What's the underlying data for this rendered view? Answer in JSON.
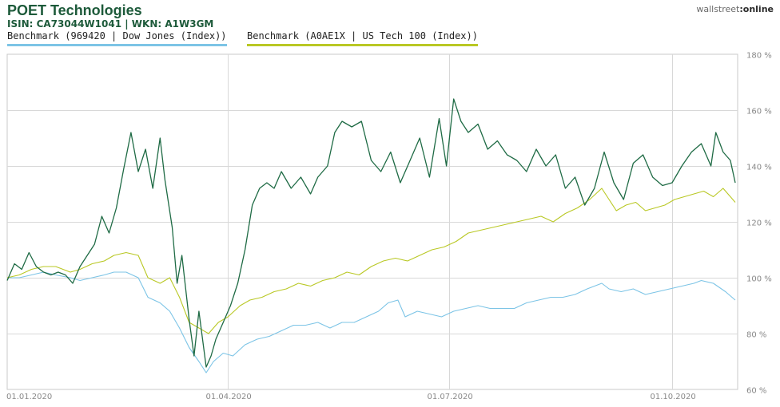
{
  "header": {
    "title": "POET Technologies",
    "subtitle": "ISIN: CA73044W1041  | WKN: A1W3GM",
    "brand_left": "wallstreet",
    "brand_right": ":online"
  },
  "legend": [
    {
      "label": "Benchmark (969420 | Dow Jones (Index))",
      "color": "#7cc4e6"
    },
    {
      "label": "Benchmark (A0AE1X | US Tech 100 (Index))",
      "color": "#b9c824"
    }
  ],
  "chart_data": {
    "type": "line",
    "title": "POET Technologies",
    "x_ticks": [
      "01.01.2020",
      "01.04.2020",
      "01.07.2020",
      "01.10.2020"
    ],
    "y_ticks": [
      "180 %",
      "160 %",
      "140 %",
      "120 %",
      "100 %",
      "80 %",
      "60 %"
    ],
    "ylim": [
      60,
      180
    ],
    "y_unit": "%",
    "grid": true,
    "legend_position": "top-left",
    "series": [
      {
        "name": "",
        "color": "#1f6b45",
        "points": [
          [
            "2020-01-01",
            99
          ],
          [
            "2020-01-04",
            105
          ],
          [
            "2020-01-07",
            103
          ],
          [
            "2020-01-10",
            109
          ],
          [
            "2020-01-13",
            104
          ],
          [
            "2020-01-16",
            102
          ],
          [
            "2020-01-19",
            101
          ],
          [
            "2020-01-22",
            102
          ],
          [
            "2020-01-25",
            101
          ],
          [
            "2020-01-28",
            98
          ],
          [
            "2020-01-31",
            104
          ],
          [
            "2020-02-03",
            108
          ],
          [
            "2020-02-06",
            112
          ],
          [
            "2020-02-09",
            122
          ],
          [
            "2020-02-12",
            116
          ],
          [
            "2020-02-15",
            125
          ],
          [
            "2020-02-18",
            139
          ],
          [
            "2020-02-21",
            152
          ],
          [
            "2020-02-24",
            138
          ],
          [
            "2020-02-27",
            146
          ],
          [
            "2020-03-01",
            132
          ],
          [
            "2020-03-04",
            150
          ],
          [
            "2020-03-06",
            135
          ],
          [
            "2020-03-09",
            118
          ],
          [
            "2020-03-11",
            98
          ],
          [
            "2020-03-13",
            108
          ],
          [
            "2020-03-16",
            85
          ],
          [
            "2020-03-18",
            72
          ],
          [
            "2020-03-20",
            88
          ],
          [
            "2020-03-23",
            68
          ],
          [
            "2020-03-25",
            72
          ],
          [
            "2020-03-27",
            78
          ],
          [
            "2020-03-30",
            84
          ],
          [
            "2020-04-02",
            90
          ],
          [
            "2020-04-05",
            98
          ],
          [
            "2020-04-08",
            110
          ],
          [
            "2020-04-11",
            126
          ],
          [
            "2020-04-14",
            132
          ],
          [
            "2020-04-17",
            134
          ],
          [
            "2020-04-20",
            132
          ],
          [
            "2020-04-23",
            138
          ],
          [
            "2020-04-27",
            132
          ],
          [
            "2020-05-01",
            136
          ],
          [
            "2020-05-05",
            130
          ],
          [
            "2020-05-08",
            136
          ],
          [
            "2020-05-12",
            140
          ],
          [
            "2020-05-15",
            152
          ],
          [
            "2020-05-18",
            156
          ],
          [
            "2020-05-22",
            154
          ],
          [
            "2020-05-26",
            156
          ],
          [
            "2020-05-30",
            142
          ],
          [
            "2020-06-03",
            138
          ],
          [
            "2020-06-07",
            145
          ],
          [
            "2020-06-11",
            134
          ],
          [
            "2020-06-15",
            142
          ],
          [
            "2020-06-19",
            150
          ],
          [
            "2020-06-23",
            136
          ],
          [
            "2020-06-27",
            157
          ],
          [
            "2020-06-30",
            140
          ],
          [
            "2020-07-03",
            164
          ],
          [
            "2020-07-06",
            156
          ],
          [
            "2020-07-09",
            152
          ],
          [
            "2020-07-13",
            155
          ],
          [
            "2020-07-17",
            146
          ],
          [
            "2020-07-21",
            149
          ],
          [
            "2020-07-25",
            144
          ],
          [
            "2020-07-29",
            142
          ],
          [
            "2020-08-02",
            138
          ],
          [
            "2020-08-06",
            146
          ],
          [
            "2020-08-10",
            140
          ],
          [
            "2020-08-14",
            144
          ],
          [
            "2020-08-18",
            132
          ],
          [
            "2020-08-22",
            136
          ],
          [
            "2020-08-26",
            126
          ],
          [
            "2020-08-30",
            132
          ],
          [
            "2020-09-03",
            145
          ],
          [
            "2020-09-07",
            134
          ],
          [
            "2020-09-11",
            128
          ],
          [
            "2020-09-15",
            141
          ],
          [
            "2020-09-19",
            144
          ],
          [
            "2020-09-23",
            136
          ],
          [
            "2020-09-27",
            133
          ],
          [
            "2020-10-01",
            134
          ],
          [
            "2020-10-05",
            140
          ],
          [
            "2020-10-09",
            145
          ],
          [
            "2020-10-13",
            148
          ],
          [
            "2020-10-17",
            140
          ],
          [
            "2020-10-19",
            152
          ],
          [
            "2020-10-22",
            145
          ],
          [
            "2020-10-25",
            142
          ],
          [
            "2020-10-27",
            134
          ]
        ]
      },
      {
        "name": "Benchmark (A0AE1X | US Tech 100 (Index))",
        "color": "#b9c824",
        "points": [
          [
            "2020-01-01",
            100
          ],
          [
            "2020-01-06",
            101
          ],
          [
            "2020-01-11",
            103
          ],
          [
            "2020-01-16",
            104
          ],
          [
            "2020-01-21",
            104
          ],
          [
            "2020-01-27",
            102
          ],
          [
            "2020-01-31",
            103
          ],
          [
            "2020-02-05",
            105
          ],
          [
            "2020-02-10",
            106
          ],
          [
            "2020-02-14",
            108
          ],
          [
            "2020-02-19",
            109
          ],
          [
            "2020-02-24",
            108
          ],
          [
            "2020-02-28",
            100
          ],
          [
            "2020-03-04",
            98
          ],
          [
            "2020-03-08",
            100
          ],
          [
            "2020-03-12",
            93
          ],
          [
            "2020-03-16",
            84
          ],
          [
            "2020-03-20",
            82
          ],
          [
            "2020-03-24",
            80
          ],
          [
            "2020-03-28",
            84
          ],
          [
            "2020-04-01",
            86
          ],
          [
            "2020-04-06",
            90
          ],
          [
            "2020-04-10",
            92
          ],
          [
            "2020-04-15",
            93
          ],
          [
            "2020-04-20",
            95
          ],
          [
            "2020-04-25",
            96
          ],
          [
            "2020-04-30",
            98
          ],
          [
            "2020-05-05",
            97
          ],
          [
            "2020-05-10",
            99
          ],
          [
            "2020-05-15",
            100
          ],
          [
            "2020-05-20",
            102
          ],
          [
            "2020-05-25",
            101
          ],
          [
            "2020-05-30",
            104
          ],
          [
            "2020-06-04",
            106
          ],
          [
            "2020-06-09",
            107
          ],
          [
            "2020-06-14",
            106
          ],
          [
            "2020-06-19",
            108
          ],
          [
            "2020-06-24",
            110
          ],
          [
            "2020-06-29",
            111
          ],
          [
            "2020-07-04",
            113
          ],
          [
            "2020-07-09",
            116
          ],
          [
            "2020-07-14",
            117
          ],
          [
            "2020-07-19",
            118
          ],
          [
            "2020-07-24",
            119
          ],
          [
            "2020-07-29",
            120
          ],
          [
            "2020-08-03",
            121
          ],
          [
            "2020-08-08",
            122
          ],
          [
            "2020-08-13",
            120
          ],
          [
            "2020-08-18",
            123
          ],
          [
            "2020-08-23",
            125
          ],
          [
            "2020-08-28",
            128
          ],
          [
            "2020-09-02",
            132
          ],
          [
            "2020-09-05",
            128
          ],
          [
            "2020-09-08",
            124
          ],
          [
            "2020-09-12",
            126
          ],
          [
            "2020-09-16",
            127
          ],
          [
            "2020-09-20",
            124
          ],
          [
            "2020-09-24",
            125
          ],
          [
            "2020-09-28",
            126
          ],
          [
            "2020-10-02",
            128
          ],
          [
            "2020-10-06",
            129
          ],
          [
            "2020-10-10",
            130
          ],
          [
            "2020-10-14",
            131
          ],
          [
            "2020-10-18",
            129
          ],
          [
            "2020-10-22",
            132
          ],
          [
            "2020-10-27",
            127
          ]
        ]
      },
      {
        "name": "Benchmark (969420 | Dow Jones (Index))",
        "color": "#7cc4e6",
        "points": [
          [
            "2020-01-01",
            100
          ],
          [
            "2020-01-06",
            100
          ],
          [
            "2020-01-11",
            101
          ],
          [
            "2020-01-16",
            102
          ],
          [
            "2020-01-21",
            101
          ],
          [
            "2020-01-27",
            100
          ],
          [
            "2020-01-31",
            99
          ],
          [
            "2020-02-05",
            100
          ],
          [
            "2020-02-10",
            101
          ],
          [
            "2020-02-14",
            102
          ],
          [
            "2020-02-19",
            102
          ],
          [
            "2020-02-24",
            100
          ],
          [
            "2020-02-28",
            93
          ],
          [
            "2020-03-04",
            91
          ],
          [
            "2020-03-08",
            88
          ],
          [
            "2020-03-12",
            82
          ],
          [
            "2020-03-16",
            75
          ],
          [
            "2020-03-20",
            70
          ],
          [
            "2020-03-23",
            66
          ],
          [
            "2020-03-26",
            70
          ],
          [
            "2020-03-30",
            73
          ],
          [
            "2020-04-03",
            72
          ],
          [
            "2020-04-08",
            76
          ],
          [
            "2020-04-13",
            78
          ],
          [
            "2020-04-18",
            79
          ],
          [
            "2020-04-23",
            81
          ],
          [
            "2020-04-28",
            83
          ],
          [
            "2020-05-03",
            83
          ],
          [
            "2020-05-08",
            84
          ],
          [
            "2020-05-13",
            82
          ],
          [
            "2020-05-18",
            84
          ],
          [
            "2020-05-23",
            84
          ],
          [
            "2020-05-28",
            86
          ],
          [
            "2020-06-02",
            88
          ],
          [
            "2020-06-06",
            91
          ],
          [
            "2020-06-10",
            92
          ],
          [
            "2020-06-13",
            86
          ],
          [
            "2020-06-18",
            88
          ],
          [
            "2020-06-23",
            87
          ],
          [
            "2020-06-28",
            86
          ],
          [
            "2020-07-03",
            88
          ],
          [
            "2020-07-08",
            89
          ],
          [
            "2020-07-13",
            90
          ],
          [
            "2020-07-18",
            89
          ],
          [
            "2020-07-23",
            89
          ],
          [
            "2020-07-28",
            89
          ],
          [
            "2020-08-02",
            91
          ],
          [
            "2020-08-07",
            92
          ],
          [
            "2020-08-12",
            93
          ],
          [
            "2020-08-17",
            93
          ],
          [
            "2020-08-22",
            94
          ],
          [
            "2020-08-27",
            96
          ],
          [
            "2020-09-02",
            98
          ],
          [
            "2020-09-05",
            96
          ],
          [
            "2020-09-10",
            95
          ],
          [
            "2020-09-15",
            96
          ],
          [
            "2020-09-20",
            94
          ],
          [
            "2020-09-25",
            95
          ],
          [
            "2020-09-30",
            96
          ],
          [
            "2020-10-05",
            97
          ],
          [
            "2020-10-10",
            98
          ],
          [
            "2020-10-13",
            99
          ],
          [
            "2020-10-18",
            98
          ],
          [
            "2020-10-23",
            95
          ],
          [
            "2020-10-27",
            92
          ]
        ]
      }
    ]
  }
}
